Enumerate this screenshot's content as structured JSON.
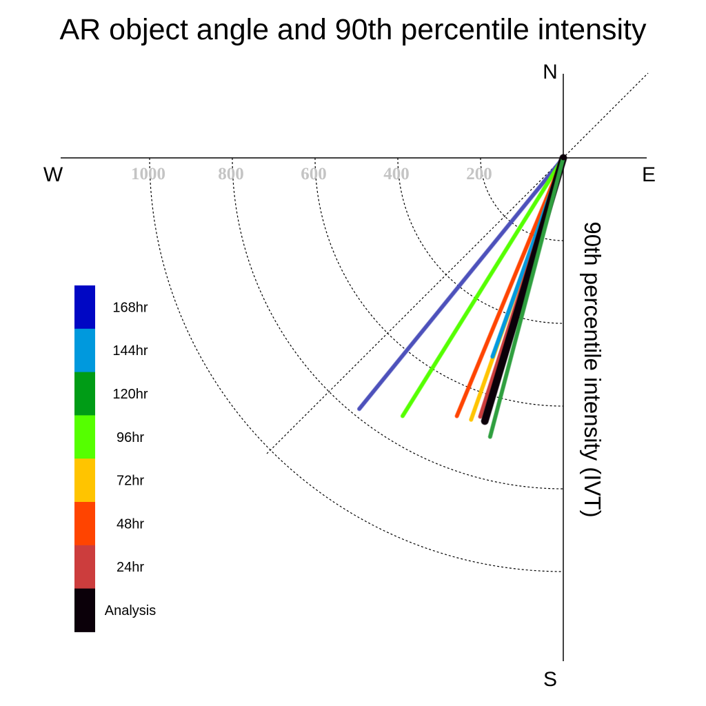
{
  "chart_data": {
    "type": "polar-vector",
    "title": "AR object angle and 90th percentile intensity",
    "radial_label": "90th percentile intensity (IVT)",
    "compass": {
      "north": "N",
      "south": "S",
      "east": "E",
      "west": "W"
    },
    "radial_ticks": [
      200,
      400,
      600,
      800,
      1000
    ],
    "radial_tick_labels": [
      "200",
      "400",
      "600",
      "800",
      "1000"
    ],
    "r_max": 1200,
    "grid": true,
    "legend_placement": "left",
    "legend": [
      {
        "label": "168hr",
        "color": "#0007c4"
      },
      {
        "label": "144hr",
        "color": "#0099dd"
      },
      {
        "label": "120hr",
        "color": "#009c16"
      },
      {
        "label": "96hr",
        "color": "#55ff00"
      },
      {
        "label": "72hr",
        "color": "#ffc400"
      },
      {
        "label": "48hr",
        "color": "#ff4400"
      },
      {
        "label": "24hr",
        "color": "#cc3d3d"
      },
      {
        "label": "Analysis",
        "color": "#0b0009"
      }
    ],
    "series": [
      {
        "name": "168hr",
        "color": "#4d51bb",
        "angle_deg": 219.1,
        "intensity": 782,
        "width": 5
      },
      {
        "name": "96hr",
        "color": "#55ff00",
        "angle_deg": 211.9,
        "intensity": 735,
        "width": 5
      },
      {
        "name": "48hr",
        "color": "#ff4400",
        "angle_deg": 202.4,
        "intensity": 675,
        "width": 5
      },
      {
        "name": "72hr",
        "color": "#ffc400",
        "angle_deg": 199.4,
        "intensity": 671,
        "width": 5
      },
      {
        "name": "144hr",
        "color": "#0099dd",
        "angle_deg": 199.6,
        "intensity": 510,
        "width": 5
      },
      {
        "name": "24hr",
        "color": "#cc3d3d",
        "angle_deg": 197.8,
        "intensity": 657,
        "width": 5
      },
      {
        "name": "Analysis",
        "color": "#0b0009",
        "angle_deg": 196.6,
        "intensity": 664,
        "width": 10
      },
      {
        "name": "120hr",
        "color": "#2f9f3f",
        "angle_deg": 194.7,
        "intensity": 697,
        "width": 5
      }
    ]
  }
}
